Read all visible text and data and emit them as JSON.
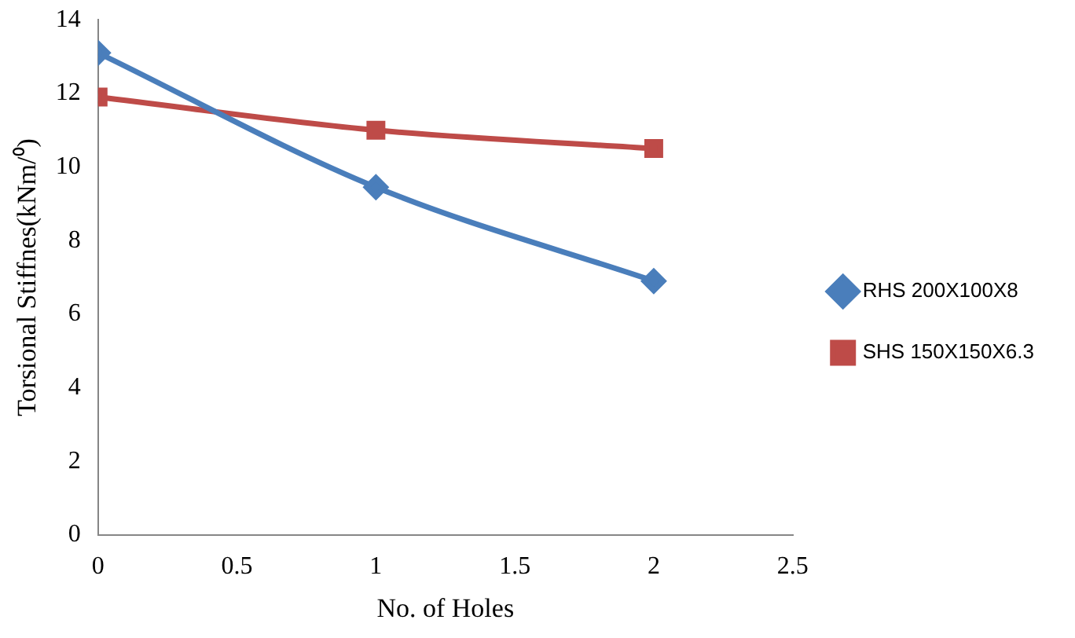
{
  "chart_data": {
    "type": "line",
    "xlabel": "No. of Holes",
    "ylabel": "Torsional Stiffnes(kNm/⁰)",
    "x": [
      0,
      1,
      2
    ],
    "series": [
      {
        "name": "RHS 200X100X8",
        "color": "#4a7ebb",
        "marker": "diamond",
        "values": [
          13.1,
          9.45,
          6.9
        ]
      },
      {
        "name": "SHS 150X150X6.3",
        "color": "#be4b48",
        "marker": "square",
        "values": [
          11.9,
          11.0,
          10.5
        ]
      }
    ],
    "xlim": [
      0,
      2.5
    ],
    "xticks": [
      0,
      0.5,
      1,
      1.5,
      2,
      2.5
    ],
    "ylim": [
      0,
      14
    ],
    "yticks": [
      0,
      2,
      4,
      6,
      8,
      10,
      12,
      14
    ],
    "grid": false,
    "legend": "right",
    "line_style": "solid"
  }
}
